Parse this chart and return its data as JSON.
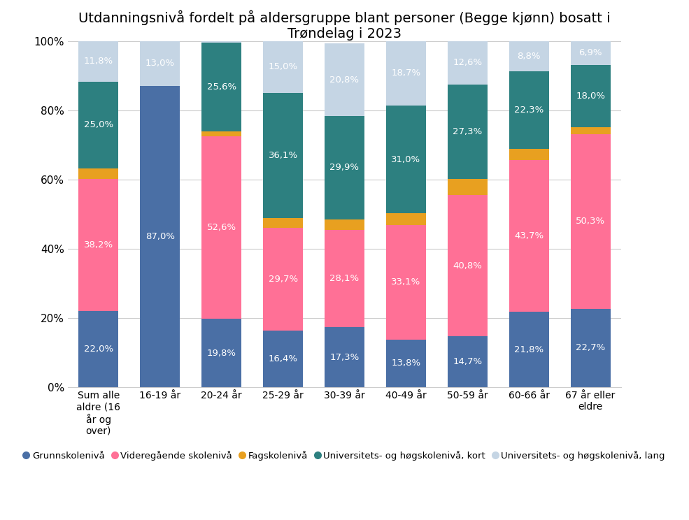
{
  "title": "Utdanningsnivå fordelt på aldersgruppe blant personer (Begge kjønn) bosatt i\nTrøndelag i 2023",
  "categories": [
    "Sum alle\naldre (16\når og\nover)",
    "16-19 år",
    "20-24 år",
    "25-29 år",
    "30-39 år",
    "40-49 år",
    "50-59 år",
    "60-66 år",
    "67 år eller\neldre"
  ],
  "series": [
    {
      "name": "Grunnskolenivå",
      "color": "#4A6FA5",
      "values": [
        22.0,
        87.0,
        19.8,
        16.4,
        17.3,
        13.8,
        14.7,
        21.8,
        22.7
      ]
    },
    {
      "name": "Videregående skolenivå",
      "color": "#FF7096",
      "values": [
        38.2,
        0.0,
        52.6,
        29.7,
        28.1,
        33.1,
        40.8,
        43.7,
        50.3
      ]
    },
    {
      "name": "Fagskolenivå",
      "color": "#E8A020",
      "values": [
        3.0,
        0.0,
        1.4,
        2.8,
        3.1,
        3.4,
        4.6,
        3.4,
        2.1
      ]
    },
    {
      "name": "Universitets- og høgskolenivå, kort",
      "color": "#2D8080",
      "values": [
        25.0,
        0.0,
        25.6,
        36.1,
        29.9,
        31.0,
        27.3,
        22.3,
        18.0
      ]
    },
    {
      "name": "Universitets- og høgskolenivå, lang",
      "color": "#C5D5E4",
      "values": [
        11.8,
        13.0,
        0.6,
        15.0,
        20.8,
        18.7,
        12.6,
        8.8,
        6.9
      ]
    }
  ],
  "show_labels": [
    [
      true,
      true,
      true,
      true,
      true,
      true,
      true,
      true,
      true
    ],
    [
      true,
      false,
      true,
      true,
      true,
      true,
      true,
      true,
      true
    ],
    [
      false,
      false,
      false,
      false,
      false,
      false,
      false,
      false,
      false
    ],
    [
      true,
      false,
      true,
      true,
      true,
      true,
      true,
      true,
      true
    ],
    [
      true,
      true,
      false,
      true,
      true,
      true,
      true,
      true,
      true
    ]
  ],
  "label_values": [
    [
      "22,0%",
      "87,0%",
      "19,8%",
      "16,4%",
      "17,3%",
      "13,8%",
      "14,7%",
      "21,8%",
      "22,7%"
    ],
    [
      "38,2%",
      "",
      "52,6%",
      "29,7%",
      "28,1%",
      "33,1%",
      "40,8%",
      "43,7%",
      "50,3%"
    ],
    [
      "",
      "",
      "",
      "",
      "",
      "",
      "",
      "",
      ""
    ],
    [
      "25,0%",
      "",
      "25,6%",
      "36,1%",
      "29,9%",
      "31,0%",
      "27,3%",
      "22,3%",
      "18,0%"
    ],
    [
      "11,8%",
      "13,0%",
      "",
      "15,0%",
      "20,8%",
      "18,7%",
      "12,6%",
      "8,8%",
      "6,9%"
    ]
  ],
  "ylim": [
    0,
    100
  ],
  "yticks": [
    0,
    20,
    40,
    60,
    80,
    100
  ],
  "ytick_labels": [
    "0%",
    "20%",
    "40%",
    "60%",
    "80%",
    "100%"
  ],
  "background_color": "#FFFFFF",
  "text_color": "#FFFFFF",
  "title_fontsize": 14,
  "label_fontsize": 9.5,
  "legend_fontsize": 9.5,
  "bar_width": 0.65
}
